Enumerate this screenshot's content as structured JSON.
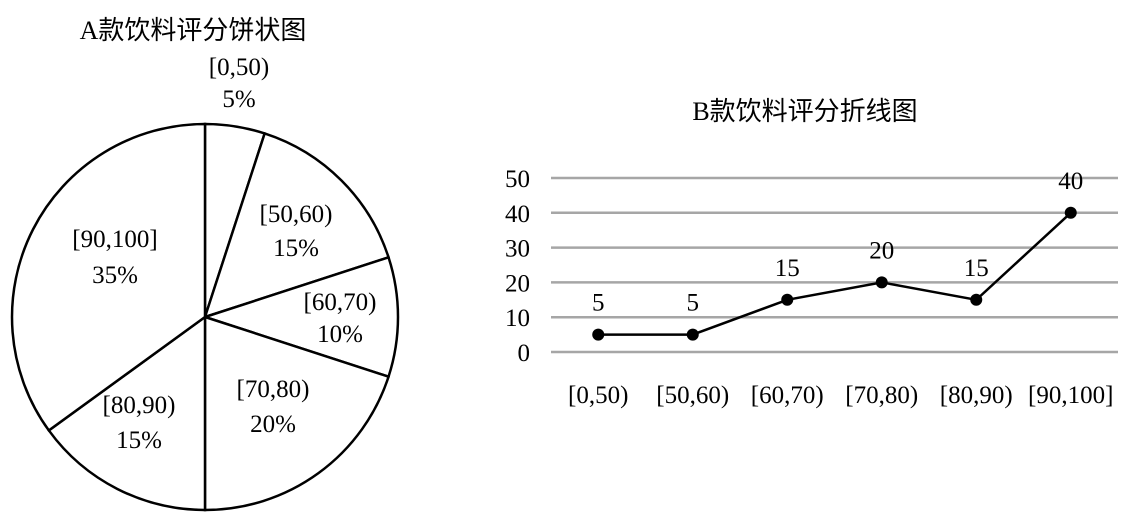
{
  "chart_data": [
    {
      "type": "pie",
      "title": "A款饮料评分饼状图",
      "categories": [
        "[0,50)",
        "[50,60)",
        "[60,70)",
        "[70,80)",
        "[80,90)",
        "[90,100]"
      ],
      "values": [
        5,
        15,
        10,
        20,
        15,
        35
      ],
      "value_labels": [
        "5%",
        "15%",
        "10%",
        "20%",
        "15%",
        "35%"
      ],
      "start": "top, clockwise",
      "fill_color": "#ffffff",
      "stroke_color": "#000000"
    },
    {
      "type": "line",
      "title": "B款饮料评分折线图",
      "categories": [
        "[0,50)",
        "[50,60)",
        "[60,70)",
        "[70,80)",
        "[80,90)",
        "[90,100]"
      ],
      "values": [
        5,
        5,
        15,
        20,
        15,
        40
      ],
      "value_labels": [
        "5",
        "5",
        "15",
        "20",
        "15",
        "40"
      ],
      "y_ticks": [
        "0",
        "10",
        "20",
        "30",
        "40",
        "50"
      ],
      "ylim": [
        0,
        50
      ],
      "grid": true,
      "grid_color": "#a6a6a6",
      "line_color": "#000000"
    }
  ]
}
